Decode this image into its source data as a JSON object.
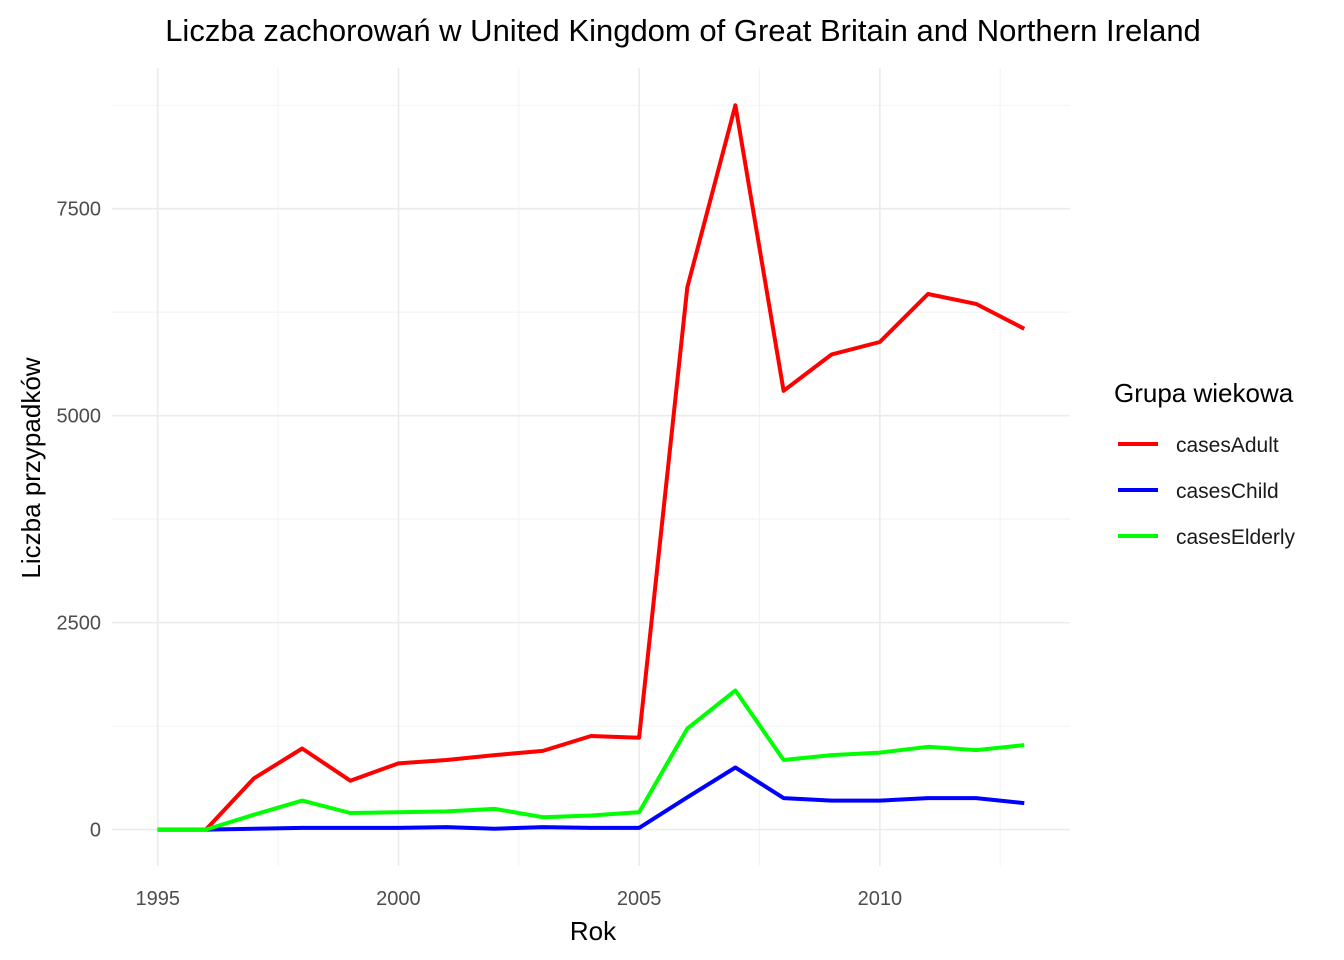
{
  "chart_data": {
    "type": "line",
    "title": "Liczba zachorowań w United Kingdom of Great Britain and Northern Ireland",
    "xlabel": "Rok",
    "ylabel": "Liczba przypadków",
    "x": [
      1995,
      1996,
      1997,
      1998,
      1999,
      2000,
      2001,
      2002,
      2003,
      2004,
      2005,
      2006,
      2007,
      2008,
      2009,
      2010,
      2011,
      2012,
      2013
    ],
    "x_ticks": [
      "1995",
      "2000",
      "2005",
      "2010"
    ],
    "y_ticks": [
      "0",
      "2500",
      "5000",
      "7500"
    ],
    "xlim": [
      1994.05,
      2013.95
    ],
    "ylim": [
      -440,
      9200
    ],
    "grid": true,
    "legend": {
      "title": "Grupa wiekowa",
      "placement": "right"
    },
    "series": [
      {
        "name": "casesAdult",
        "color": "#ff0000",
        "values": [
          0,
          0,
          620,
          980,
          590,
          800,
          840,
          900,
          950,
          1130,
          1110,
          6550,
          8750,
          5300,
          5740,
          5890,
          6470,
          6350,
          6050
        ]
      },
      {
        "name": "casesChild",
        "color": "#0000ff",
        "values": [
          0,
          0,
          10,
          20,
          20,
          20,
          30,
          10,
          30,
          20,
          20,
          390,
          750,
          380,
          350,
          350,
          380,
          380,
          320
        ]
      },
      {
        "name": "casesElderly",
        "color": "#00ff00",
        "values": [
          0,
          0,
          180,
          350,
          200,
          210,
          220,
          250,
          150,
          170,
          210,
          1220,
          1680,
          840,
          900,
          930,
          1000,
          960,
          1020
        ]
      }
    ]
  }
}
